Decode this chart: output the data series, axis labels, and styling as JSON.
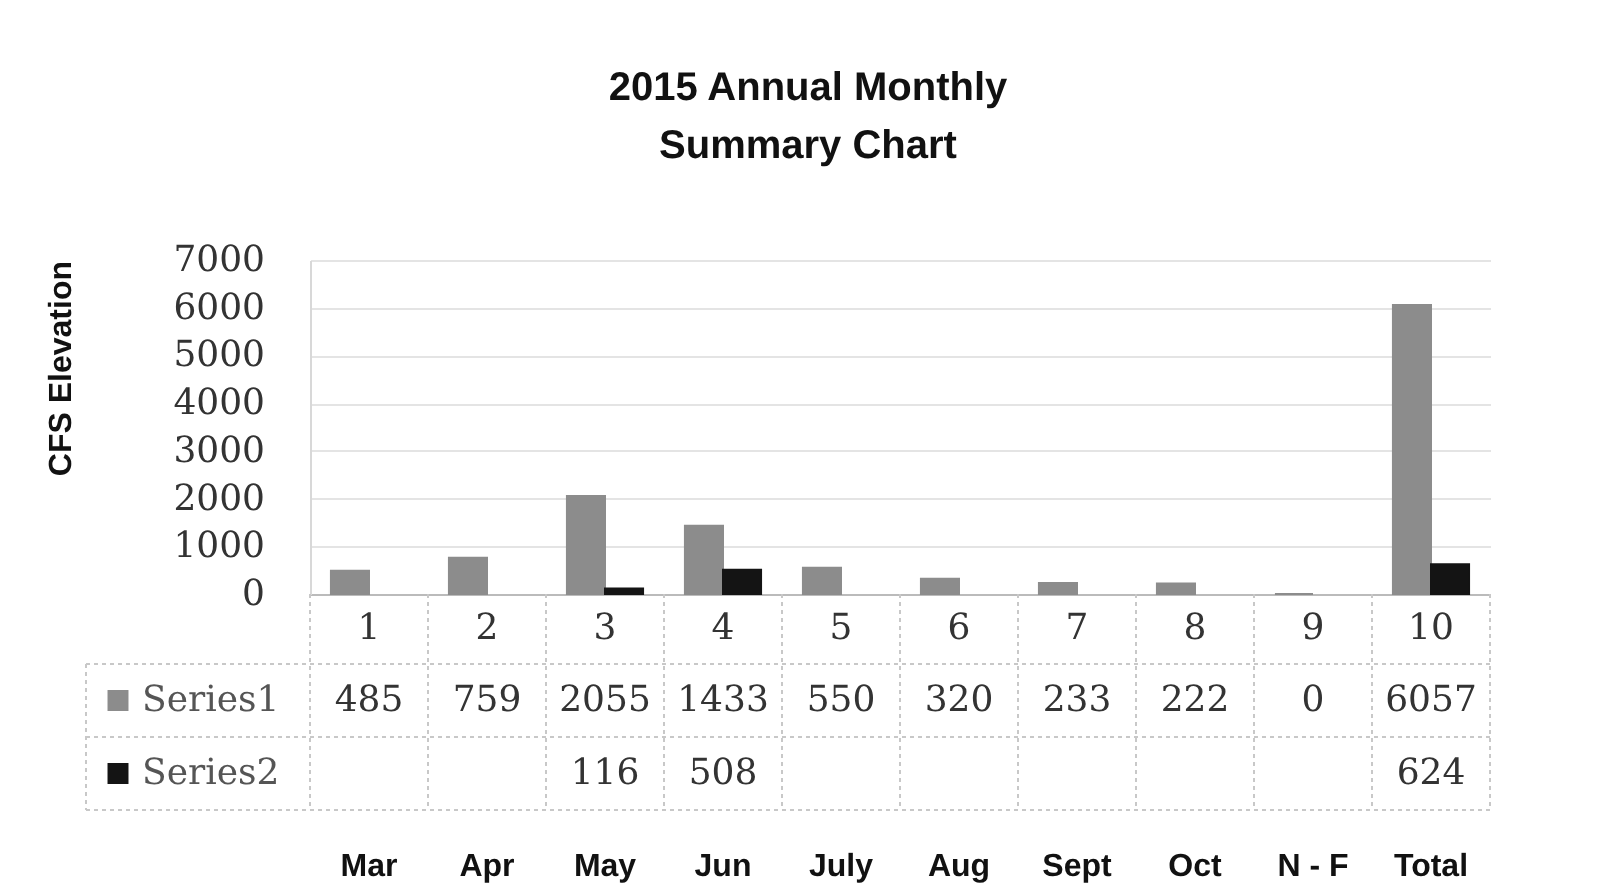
{
  "chart_data": {
    "type": "bar",
    "title": "2015 Annual Monthly\nSummary Chart",
    "ylabel": "CFS Elevation",
    "categories": [
      "1",
      "2",
      "3",
      "4",
      "5",
      "6",
      "7",
      "8",
      "9",
      "10"
    ],
    "series": [
      {
        "name": "Series1",
        "color": "#8c8c8c",
        "values": [
          485,
          759,
          2055,
          1433,
          550,
          320,
          233,
          222,
          0,
          6057
        ]
      },
      {
        "name": "Series2",
        "color": "#141414",
        "values": [
          null,
          null,
          116,
          508,
          null,
          null,
          null,
          null,
          null,
          624
        ]
      }
    ],
    "ylim": [
      0,
      7000
    ],
    "yticks": [
      0,
      1000,
      2000,
      3000,
      4000,
      5000,
      6000,
      7000
    ],
    "grid": "y",
    "legend": "bottom",
    "data_labels": true,
    "annotations": [
      "Mar",
      "Apr",
      "May",
      "Jun",
      "July",
      "Aug",
      "Sept",
      "Oct",
      "N - F",
      "Total"
    ]
  }
}
